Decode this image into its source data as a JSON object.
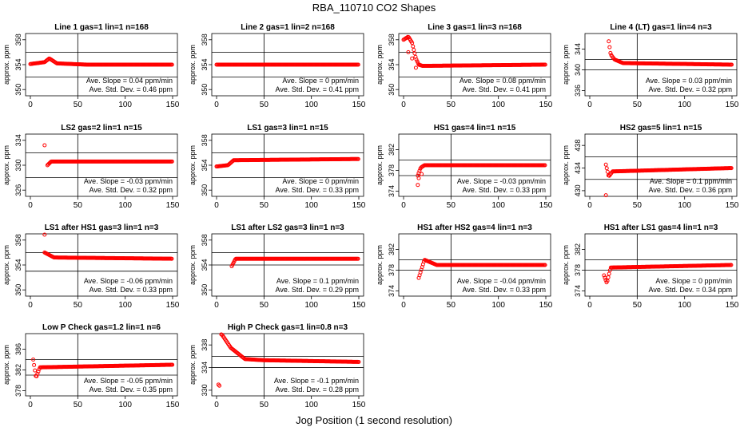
{
  "figure": {
    "title": "RBA_110710  CO2 Shapes",
    "xlabel": "Jog Position (1 second resolution)",
    "ylabel": "approx. ppm",
    "slope_label": "Ave. Slope =",
    "slope_unit": "ppm/min",
    "sd_label": "Ave. Std. Dev. =",
    "sd_unit": "ppm",
    "marker_color": "#ff0000",
    "axis_color": "#000000"
  },
  "chart_data": [
    {
      "type": "scatter",
      "title": "Line 1 gas=1 lin=1 n=168",
      "xlim": [
        0,
        150
      ],
      "ylim": [
        349,
        359
      ],
      "yticks": [
        350,
        354,
        358
      ],
      "xticks": [
        0,
        50,
        100,
        150
      ],
      "hlines": [
        356,
        352
      ],
      "vline": 50,
      "slope": "0.04",
      "sd": "0.46",
      "segments": [
        [
          0,
          354.1
        ],
        [
          15,
          354.4
        ],
        [
          20,
          355.0
        ],
        [
          28,
          354.2
        ],
        [
          60,
          354.0
        ],
        [
          150,
          354.0
        ]
      ]
    },
    {
      "type": "scatter",
      "title": "Line 2 gas=1 lin=2 n=168",
      "xlim": [
        0,
        150
      ],
      "ylim": [
        349,
        359
      ],
      "yticks": [
        350,
        354,
        358
      ],
      "xticks": [
        0,
        50,
        100,
        150
      ],
      "hlines": [
        356,
        352
      ],
      "vline": 50,
      "slope": "0",
      "sd": "0.41",
      "segments": [
        [
          0,
          354.0
        ],
        [
          150,
          354.0
        ]
      ]
    },
    {
      "type": "scatter",
      "title": "Line 3 gas=1 lin=3 n=168",
      "xlim": [
        0,
        150
      ],
      "ylim": [
        349,
        359
      ],
      "yticks": [
        350,
        354,
        358
      ],
      "xticks": [
        0,
        50,
        100,
        150
      ],
      "hlines": [
        356,
        352
      ],
      "vline": 50,
      "slope": "0.08",
      "sd": "0.41",
      "segments": [
        [
          0,
          358.0
        ],
        [
          5,
          358.5
        ],
        [
          9,
          357.5
        ],
        [
          13,
          355.0
        ],
        [
          16,
          354.0
        ],
        [
          20,
          353.8
        ],
        [
          150,
          354.0
        ]
      ],
      "extra": [
        [
          5,
          356.0
        ],
        [
          9,
          355.0
        ],
        [
          13,
          353.5
        ]
      ]
    },
    {
      "type": "scatter",
      "title": "Line 4 (LT) gas=1 lin=4 n=3",
      "xlim": [
        0,
        150
      ],
      "ylim": [
        335,
        347
      ],
      "yticks": [
        336,
        340,
        344
      ],
      "xticks": [
        0,
        50,
        100,
        150
      ],
      "hlines": [
        342,
        340
      ],
      "vline": 50,
      "slope": "0.03",
      "sd": "0.32",
      "segments": [
        [
          20,
          345.5
        ],
        [
          22,
          343.0
        ],
        [
          26,
          342.0
        ],
        [
          35,
          341.3
        ],
        [
          150,
          341.0
        ]
      ]
    },
    {
      "type": "scatter",
      "title": "LS2 gas=2 lin=1 n=15",
      "xlim": [
        0,
        150
      ],
      "ylim": [
        325,
        335
      ],
      "yticks": [
        326,
        330,
        334
      ],
      "xticks": [
        0,
        50,
        100,
        150
      ],
      "hlines": [
        332,
        328
      ],
      "vline": 50,
      "slope": "-0.03",
      "sd": "0.32",
      "segments": [
        [
          18,
          330.0
        ],
        [
          22,
          330.6
        ],
        [
          150,
          330.6
        ]
      ],
      "extra": [
        [
          15,
          333.2
        ]
      ]
    },
    {
      "type": "scatter",
      "title": "LS1 gas=3 lin=1 n=15",
      "xlim": [
        0,
        150
      ],
      "ylim": [
        349,
        359
      ],
      "yticks": [
        350,
        354,
        358
      ],
      "xticks": [
        0,
        50,
        100,
        150
      ],
      "hlines": [
        356,
        352
      ],
      "vline": 50,
      "slope": "0",
      "sd": "0.33",
      "segments": [
        [
          0,
          353.8
        ],
        [
          12,
          354.0
        ],
        [
          18,
          354.8
        ],
        [
          150,
          355.0
        ]
      ]
    },
    {
      "type": "scatter",
      "title": "HS1 gas=4 lin=1 n=15",
      "xlim": [
        0,
        150
      ],
      "ylim": [
        373,
        385
      ],
      "yticks": [
        374,
        378,
        382
      ],
      "xticks": [
        0,
        50,
        100,
        150
      ],
      "hlines": [
        380,
        377
      ],
      "vline": 50,
      "slope": "-0.03",
      "sd": "0.33",
      "segments": [
        [
          15,
          377.0
        ],
        [
          18,
          378.5
        ],
        [
          22,
          379.0
        ],
        [
          150,
          379.0
        ]
      ],
      "extra": [
        [
          15,
          375.2
        ],
        [
          16,
          376.5
        ],
        [
          19,
          377.3
        ]
      ]
    },
    {
      "type": "scatter",
      "title": "HS2 gas=5 lin=1 n=15",
      "xlim": [
        0,
        150
      ],
      "ylim": [
        429,
        440
      ],
      "yticks": [
        430,
        434,
        438
      ],
      "xticks": [
        0,
        50,
        100,
        150
      ],
      "hlines": [
        436,
        432
      ],
      "vline": 50,
      "slope": "0.1",
      "sd": "0.36",
      "segments": [
        [
          17,
          434.6
        ],
        [
          20,
          432.5
        ],
        [
          24,
          433.4
        ],
        [
          150,
          434.0
        ]
      ],
      "extra": [
        [
          17,
          429.2
        ]
      ]
    },
    {
      "type": "scatter",
      "title": "LS1 after HS1 gas=3 lin=1 n=3",
      "xlim": [
        0,
        150
      ],
      "ylim": [
        349,
        359
      ],
      "yticks": [
        350,
        354,
        358
      ],
      "xticks": [
        0,
        50,
        100,
        150
      ],
      "hlines": [
        356,
        353
      ],
      "vline": 50,
      "slope": "-0.06",
      "sd": "0.33",
      "segments": [
        [
          15,
          356.0
        ],
        [
          25,
          355.2
        ],
        [
          150,
          355.0
        ]
      ],
      "extra": [
        [
          15,
          359.0
        ]
      ]
    },
    {
      "type": "scatter",
      "title": "LS1 after LS2 gas=3 lin=1 n=3",
      "xlim": [
        0,
        150
      ],
      "ylim": [
        349,
        359
      ],
      "yticks": [
        350,
        354,
        358
      ],
      "xticks": [
        0,
        50,
        100,
        150
      ],
      "hlines": [
        356,
        354
      ],
      "vline": 50,
      "slope": "0.1",
      "sd": "0.29",
      "segments": [
        [
          16,
          353.8
        ],
        [
          20,
          355.0
        ],
        [
          150,
          355.0
        ]
      ]
    },
    {
      "type": "scatter",
      "title": "HS1 after HS2 gas=4 lin=1 n=3",
      "xlim": [
        0,
        150
      ],
      "ylim": [
        373,
        385
      ],
      "yticks": [
        374,
        378,
        382
      ],
      "xticks": [
        0,
        50,
        100,
        150
      ],
      "hlines": [
        380,
        378
      ],
      "vline": 50,
      "slope": "-0.04",
      "sd": "0.33",
      "segments": [
        [
          16,
          376.5
        ],
        [
          22,
          380.0
        ],
        [
          35,
          379.0
        ],
        [
          150,
          379.0
        ]
      ]
    },
    {
      "type": "scatter",
      "title": "HS1 after LS1 gas=4 lin=1 n=3",
      "xlim": [
        0,
        150
      ],
      "ylim": [
        373,
        385
      ],
      "yticks": [
        374,
        378,
        382
      ],
      "xticks": [
        0,
        50,
        100,
        150
      ],
      "hlines": [
        380,
        378
      ],
      "vline": 50,
      "slope": "0",
      "sd": "0.34",
      "segments": [
        [
          15,
          377.0
        ],
        [
          18,
          375.5
        ],
        [
          22,
          378.5
        ],
        [
          150,
          379.0
        ]
      ]
    },
    {
      "type": "scatter",
      "title": "Low P Check gas=1.2 lin=1 n=6",
      "xlim": [
        0,
        150
      ],
      "ylim": [
        377,
        389
      ],
      "yticks": [
        378,
        382,
        386
      ],
      "xticks": [
        0,
        50,
        100,
        150
      ],
      "hlines": [
        384,
        381
      ],
      "vline": 50,
      "slope": "-0.05",
      "sd": "0.35",
      "segments": [
        [
          3,
          384.0
        ],
        [
          6,
          380.5
        ],
        [
          10,
          382.5
        ],
        [
          150,
          383.0
        ]
      ]
    },
    {
      "type": "scatter",
      "title": "High P Check gas=1 lin=0.8 n=3",
      "xlim": [
        0,
        150
      ],
      "ylim": [
        329,
        340
      ],
      "yticks": [
        330,
        334,
        338
      ],
      "xticks": [
        0,
        50,
        100,
        150
      ],
      "hlines": [
        336,
        334
      ],
      "vline": 50,
      "slope": "-0.1",
      "sd": "0.28",
      "segments": [
        [
          5,
          340.0
        ],
        [
          15,
          337.5
        ],
        [
          30,
          335.5
        ],
        [
          50,
          335.3
        ],
        [
          150,
          335.0
        ]
      ],
      "extra": [
        [
          2,
          331.0
        ],
        [
          3,
          330.8
        ]
      ]
    }
  ]
}
